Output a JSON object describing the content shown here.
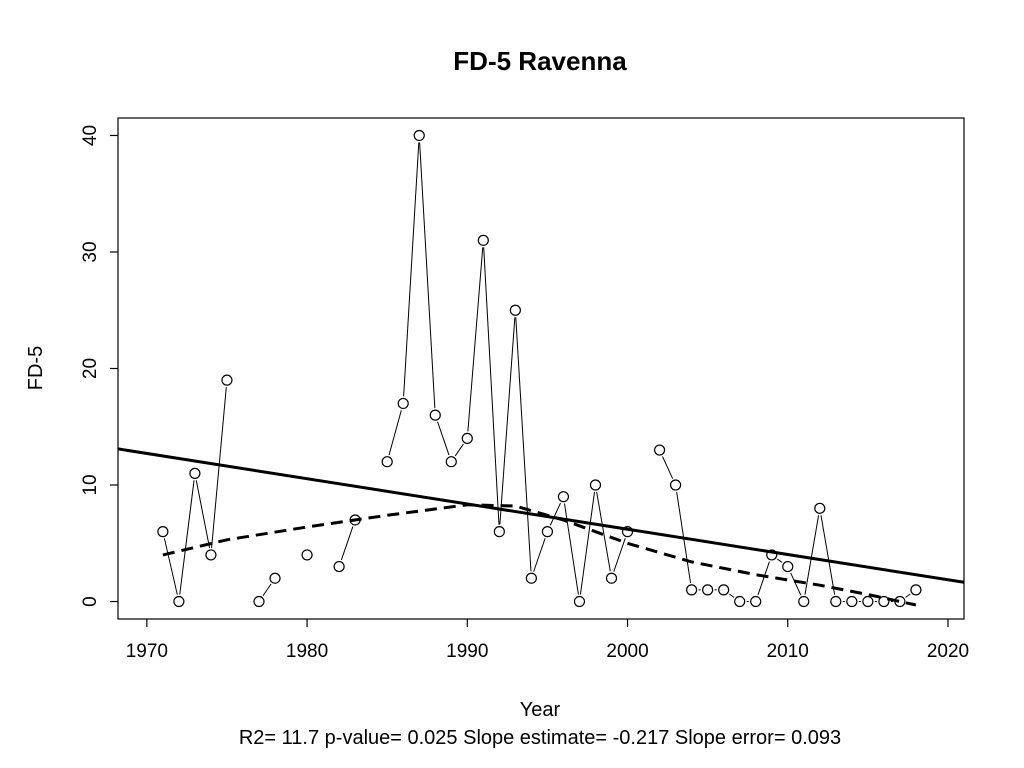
{
  "chart_data": {
    "type": "line",
    "title": "FD-5   Ravenna",
    "xlabel": "Year",
    "ylabel": "FD-5",
    "xlim": [
      1968.2,
      2021
    ],
    "ylim": [
      -1.5,
      41.5
    ],
    "xticks": [
      1970,
      1980,
      1990,
      2000,
      2010,
      2020
    ],
    "yticks": [
      0,
      10,
      20,
      30,
      40
    ],
    "grid": false,
    "legend": "none",
    "series": [
      {
        "style": "points-and-lines",
        "color": "#000000",
        "points": [
          [
            1971,
            6
          ],
          [
            1972,
            0
          ],
          [
            1973,
            11
          ],
          [
            1974,
            4
          ],
          [
            1975,
            19
          ],
          [
            1977,
            0
          ],
          [
            1978,
            2
          ],
          [
            1980,
            4
          ],
          [
            1982,
            3
          ],
          [
            1983,
            7
          ],
          [
            1985,
            12
          ],
          [
            1986,
            17
          ],
          [
            1987,
            40
          ],
          [
            1988,
            16
          ],
          [
            1989,
            12
          ],
          [
            1990,
            14
          ],
          [
            1991,
            31
          ],
          [
            1992,
            6
          ],
          [
            1993,
            25
          ],
          [
            1994,
            2
          ],
          [
            1995,
            6
          ],
          [
            1996,
            9
          ],
          [
            1997,
            0
          ],
          [
            1998,
            10
          ],
          [
            1999,
            2
          ],
          [
            2000,
            6
          ],
          [
            2002,
            13
          ],
          [
            2003,
            10
          ],
          [
            2004,
            1
          ],
          [
            2005,
            1
          ],
          [
            2006,
            1
          ],
          [
            2007,
            0
          ],
          [
            2008,
            0
          ],
          [
            2009,
            4
          ],
          [
            2010,
            3
          ],
          [
            2011,
            0
          ],
          [
            2012,
            8
          ],
          [
            2013,
            0
          ],
          [
            2014,
            0
          ],
          [
            2015,
            0
          ],
          [
            2016,
            0
          ],
          [
            2017,
            0
          ],
          [
            2018,
            1
          ]
        ]
      },
      {
        "style": "solid-trend",
        "color": "#000000",
        "points": [
          [
            1968.2,
            13.1
          ],
          [
            2021,
            1.65
          ]
        ]
      },
      {
        "style": "dashed-smooth",
        "color": "#000000",
        "points": [
          [
            1971,
            4
          ],
          [
            1975,
            5.3
          ],
          [
            1980,
            6.4
          ],
          [
            1985,
            7.4
          ],
          [
            1990,
            8.3
          ],
          [
            1993,
            8.2
          ],
          [
            1996,
            7
          ],
          [
            2000,
            5
          ],
          [
            2004,
            3.4
          ],
          [
            2008,
            2.3
          ],
          [
            2012,
            1.4
          ],
          [
            2015,
            0.6
          ],
          [
            2018,
            -0.3
          ]
        ]
      }
    ],
    "stats_text": "R2= 11.7  p-value= 0.025  Slope estimate= -0.217  Slope error= 0.093"
  }
}
